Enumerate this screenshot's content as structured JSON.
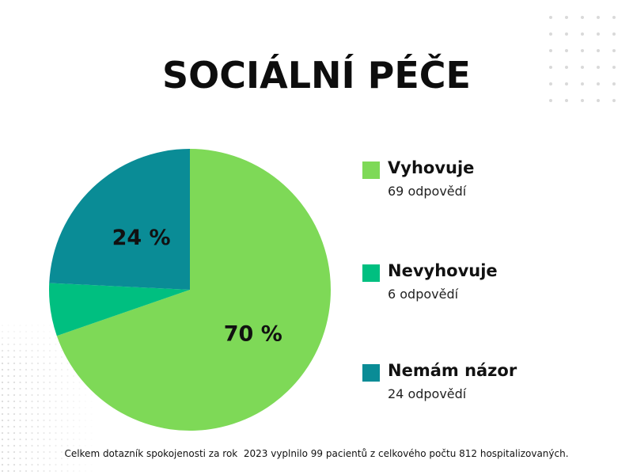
{
  "title": "SOCIÁLNÍ PÉČE",
  "footnote": "Celkem dotazník spokojenosti za rok  2023 vyplnilo 99 pacientů z celkového počtu 812 hospitalizovaných.",
  "colors": {
    "vyhovuje": "#7ed957",
    "nevyhovuje": "#00bf80",
    "nemam_nazor": "#0a8c96",
    "dots": "#d9d9d9"
  },
  "legend": [
    {
      "name": "Vyhovuje",
      "count": "69 odpovědí",
      "color": "#7ed957"
    },
    {
      "name": "Nevyhovuje",
      "count": "6 odpovědí",
      "color": "#00bf80"
    },
    {
      "name": "Nemám názor",
      "count": "24 odpovědí",
      "color": "#0a8c96"
    }
  ],
  "chart_data": {
    "type": "pie",
    "title": "SOCIÁLNÍ PÉČE",
    "categories": [
      "Vyhovuje",
      "Nevyhovuje",
      "Nemám názor"
    ],
    "values": [
      69,
      6,
      24
    ],
    "slice_labels": [
      "70 %",
      "",
      "24 %"
    ],
    "colors": [
      "#7ed957",
      "#00bf80",
      "#0a8c96"
    ],
    "legend_position": "right"
  }
}
